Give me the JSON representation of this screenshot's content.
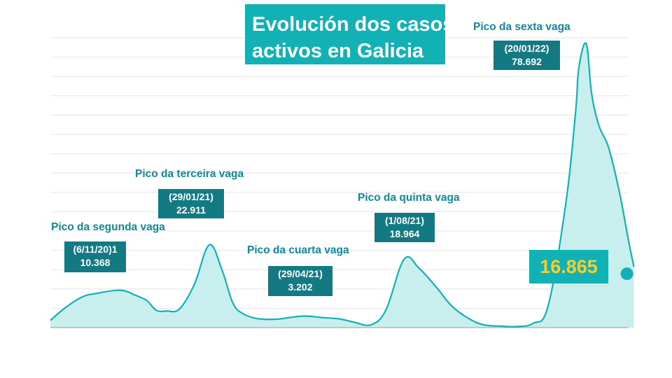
{
  "title": {
    "line1": "Evolución dos casos",
    "line2": "activos en Galicia"
  },
  "peaks": [
    {
      "id": "p2",
      "label": "Pico da segunda vaga",
      "date": "(6/11/20)1",
      "value": "10.368"
    },
    {
      "id": "p3",
      "label": "Pico da terceira vaga",
      "date": "(29/01/21)",
      "value": "22.911"
    },
    {
      "id": "p4",
      "label": "Pico da cuarta vaga",
      "date": "(29/04/21)",
      "value": "3.202"
    },
    {
      "id": "p5",
      "label": "Pico da quinta vaga",
      "date": "(1/08/21)",
      "value": "18.964"
    },
    {
      "id": "p6",
      "label": "Pico da sexta vaga",
      "date": "(20/01/22)",
      "value": "78.692"
    }
  ],
  "current": {
    "value": "16.865"
  },
  "colors": {
    "line": "#12b1b5",
    "fill": "#c9eeee",
    "title_bg": "#12b1b5",
    "label_box": "#137a84",
    "peak_text": "#0f8a96",
    "current_value": "#f6cf2c",
    "grid": "#e6e6e6"
  },
  "chart_data": {
    "type": "area",
    "title": "Evolución dos casos activos en Galicia",
    "xlabel": "",
    "ylabel": "",
    "x_range": [
      "2020-09",
      "2022-03"
    ],
    "ylim": [
      0,
      85000
    ],
    "grid": true,
    "series": [
      {
        "x": [
          "2020-09-01",
          "2020-09-15",
          "2020-10-01",
          "2020-10-15",
          "2020-11-06",
          "2020-11-20",
          "2020-12-01",
          "2020-12-10",
          "2020-12-20",
          "2021-01-01",
          "2021-01-15",
          "2021-01-29",
          "2021-02-10",
          "2021-02-20",
          "2021-03-01",
          "2021-03-15",
          "2021-04-01",
          "2021-04-15",
          "2021-04-29",
          "2021-05-15",
          "2021-06-01",
          "2021-06-15",
          "2021-07-01",
          "2021-07-15",
          "2021-08-01",
          "2021-08-15",
          "2021-09-01",
          "2021-09-15",
          "2021-10-01",
          "2021-10-15",
          "2021-11-01",
          "2021-11-15",
          "2021-12-01",
          "2021-12-15",
          "2022-01-01",
          "2022-01-10",
          "2022-01-13",
          "2022-01-20",
          "2022-01-25",
          "2022-02-01",
          "2022-02-10",
          "2022-02-20",
          "2022-03-01",
          "2022-03-06"
        ],
        "values": [
          2000,
          5500,
          8500,
          9500,
          10368,
          9000,
          7500,
          4800,
          4600,
          5200,
          12000,
          22911,
          16000,
          7000,
          4000,
          2500,
          2300,
          2800,
          3202,
          2800,
          2400,
          1500,
          800,
          5000,
          18964,
          16500,
          11000,
          6000,
          2500,
          800,
          400,
          300,
          1200,
          6000,
          35000,
          60000,
          72000,
          78692,
          65000,
          56000,
          50000,
          38000,
          24000,
          16865
        ]
      }
    ]
  }
}
